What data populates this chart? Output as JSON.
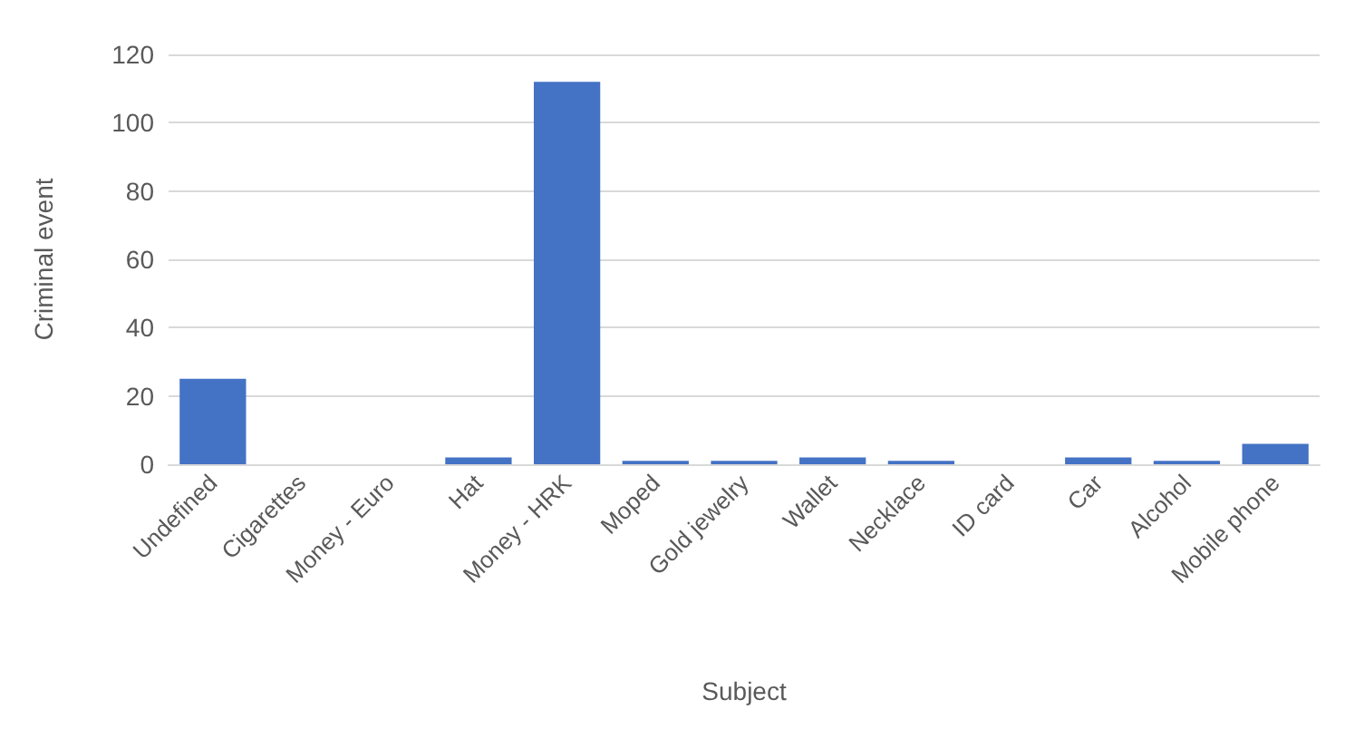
{
  "chart_data": {
    "type": "bar",
    "xlabel": "Subject",
    "ylabel": "Criminal event",
    "categories": [
      "Undefined",
      "Cigarettes",
      "Money - Euro",
      "Hat",
      "Money - HRK",
      "Moped",
      "Gold jewelry",
      "Wallet",
      "Necklace",
      "ID card",
      "Car",
      "Alcohol",
      "Mobile phone"
    ],
    "values": [
      25,
      0,
      0,
      2,
      112,
      1,
      1,
      2,
      1,
      0,
      2,
      1,
      6
    ],
    "color": "#4472c4",
    "ylim": [
      0,
      120
    ],
    "yticks": [
      0,
      20,
      40,
      60,
      80,
      100,
      120
    ],
    "grid": "y"
  }
}
